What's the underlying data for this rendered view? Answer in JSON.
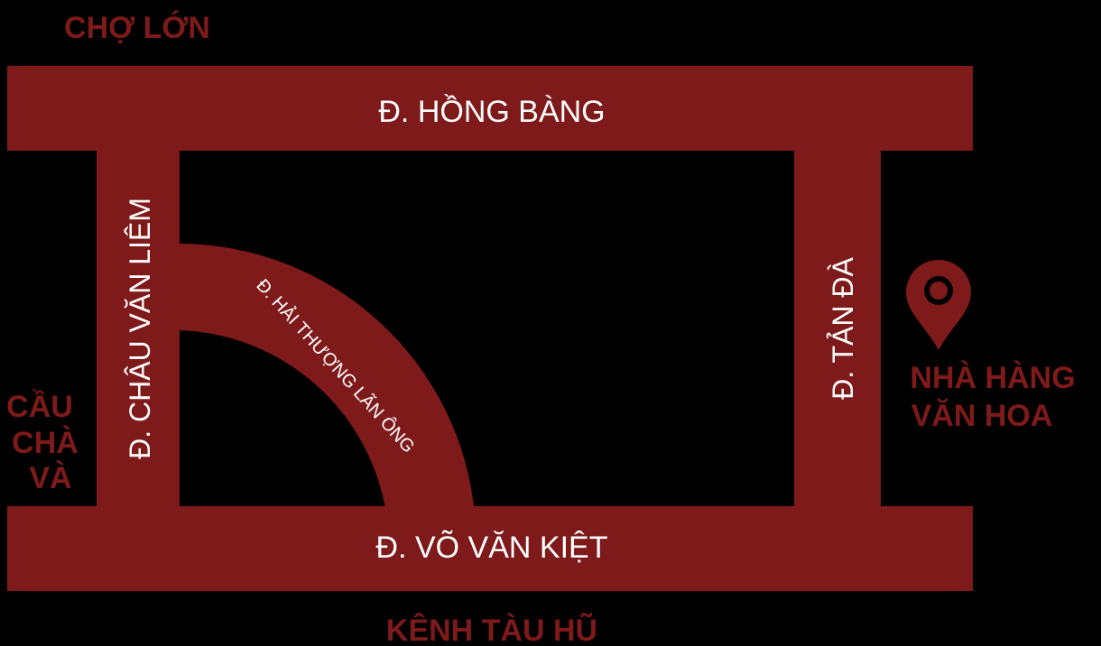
{
  "colors": {
    "background": "#000000",
    "road": "#7f1a1a",
    "road_label": "#ffffff",
    "area_label": "#7f1a1a",
    "marker": "#7f1a1a"
  },
  "areas": {
    "north": "CHỢ LỚN",
    "south": "KÊNH TÀU HŨ",
    "west_line1": "CẦU",
    "west_line2": "CHÀ",
    "west_line3": "VÀ"
  },
  "roads": {
    "top": "Đ. HỒNG BÀNG",
    "bottom": "Đ. VÕ VĂN KIỆT",
    "left": "Đ. CHÂU VĂN LIÊM",
    "right": "Đ. TẢN ĐÀ",
    "curve": "Đ. HẢI THƯỢNG LÃN ÔNG"
  },
  "marker": {
    "icon": "location-pin-icon",
    "label_line1": "NHÀ HÀNG",
    "label_line2": "VĂN HOA"
  }
}
